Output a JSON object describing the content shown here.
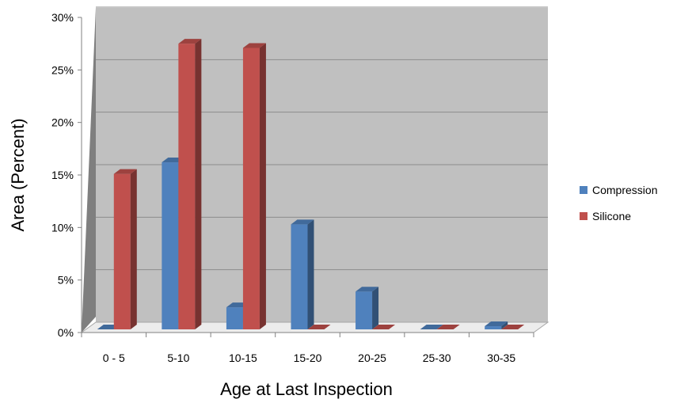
{
  "chart_data": {
    "type": "bar",
    "title": "",
    "xlabel": "Age at Last Inspection",
    "ylabel": "Area (Percent)",
    "categories": [
      "0 - 5",
      "5-10",
      "10-15",
      "15-20",
      "20-25",
      "25-30",
      "30-35"
    ],
    "series": [
      {
        "name": "Compression",
        "color": "#4f81bd",
        "values": [
          0,
          15.9,
          2.1,
          10.0,
          3.6,
          0,
          0.3
        ]
      },
      {
        "name": "Silicone",
        "color": "#c0504d",
        "values": [
          14.8,
          27.2,
          26.8,
          0,
          0,
          0,
          0
        ]
      }
    ],
    "ylim": [
      0,
      30
    ],
    "yticks": [
      "0%",
      "5%",
      "10%",
      "15%",
      "20%",
      "25%",
      "30%"
    ],
    "grid": true,
    "legend_position": "right",
    "style": "3d-clustered-column"
  }
}
